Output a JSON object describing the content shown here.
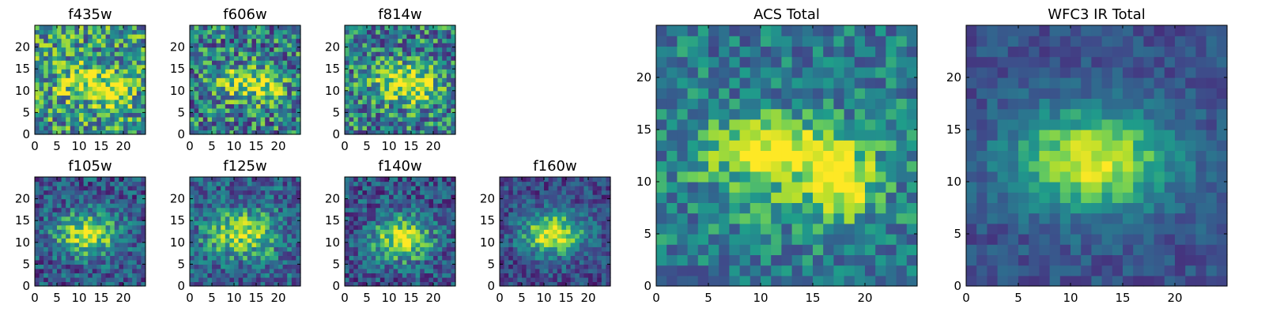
{
  "figure": {
    "description_free": true,
    "colormap": "viridis",
    "colormap_stops": [
      "#440154",
      "#482777",
      "#3f4a8a",
      "#31678e",
      "#26838f",
      "#1f9d8a",
      "#6cce5a",
      "#b6de2b",
      "#fee825"
    ],
    "grid_size": 25
  },
  "chart_data": [
    {
      "type": "heatmap",
      "title": "f435w",
      "xlabel": "",
      "ylabel": "",
      "xlim": [
        0,
        25
      ],
      "ylim": [
        0,
        25
      ],
      "xticks": [
        0,
        5,
        10,
        15,
        20
      ],
      "yticks": [
        0,
        5,
        10,
        15,
        20
      ],
      "blobs": [
        {
          "x": 12,
          "y": 12,
          "sx": 5,
          "sy": 3,
          "amp": 0.35
        },
        {
          "x": 18,
          "y": 9,
          "sx": 2.5,
          "sy": 3,
          "amp": 0.3
        }
      ],
      "base": 0.55,
      "noise": 0.35,
      "seed": 11
    },
    {
      "type": "heatmap",
      "title": "f606w",
      "xlabel": "",
      "ylabel": "",
      "xlim": [
        0,
        25
      ],
      "ylim": [
        0,
        25
      ],
      "xticks": [
        0,
        5,
        10,
        15,
        20
      ],
      "yticks": [
        0,
        5,
        10,
        15,
        20
      ],
      "blobs": [
        {
          "x": 12,
          "y": 12,
          "sx": 5,
          "sy": 2.5,
          "amp": 0.45
        },
        {
          "x": 18,
          "y": 10,
          "sx": 2.5,
          "sy": 3,
          "amp": 0.25
        }
      ],
      "base": 0.45,
      "noise": 0.35,
      "seed": 23
    },
    {
      "type": "heatmap",
      "title": "f814w",
      "xlabel": "",
      "ylabel": "",
      "xlim": [
        0,
        25
      ],
      "ylim": [
        0,
        25
      ],
      "xticks": [
        0,
        5,
        10,
        15,
        20
      ],
      "yticks": [
        0,
        5,
        10,
        15,
        20
      ],
      "blobs": [
        {
          "x": 13,
          "y": 12,
          "sx": 5,
          "sy": 3,
          "amp": 0.45
        },
        {
          "x": 17,
          "y": 10,
          "sx": 3,
          "sy": 3,
          "amp": 0.2
        }
      ],
      "base": 0.45,
      "noise": 0.33,
      "seed": 37
    },
    {
      "type": "heatmap",
      "title": "f105w",
      "xlabel": "",
      "ylabel": "",
      "xlim": [
        0,
        25
      ],
      "ylim": [
        0,
        25
      ],
      "xticks": [
        0,
        5,
        10,
        15,
        20
      ],
      "yticks": [
        0,
        5,
        10,
        15,
        20
      ],
      "blobs": [
        {
          "x": 12,
          "y": 12,
          "sx": 5,
          "sy": 3.5,
          "amp": 0.6
        }
      ],
      "base": 0.3,
      "noise": 0.25,
      "seed": 41
    },
    {
      "type": "heatmap",
      "title": "f125w",
      "xlabel": "",
      "ylabel": "",
      "xlim": [
        0,
        25
      ],
      "ylim": [
        0,
        25
      ],
      "xticks": [
        0,
        5,
        10,
        15,
        20
      ],
      "yticks": [
        0,
        5,
        10,
        15,
        20
      ],
      "blobs": [
        {
          "x": 12,
          "y": 12,
          "sx": 5.5,
          "sy": 3.5,
          "amp": 0.55
        }
      ],
      "base": 0.35,
      "noise": 0.25,
      "seed": 53
    },
    {
      "type": "heatmap",
      "title": "f140w",
      "xlabel": "",
      "ylabel": "",
      "xlim": [
        0,
        25
      ],
      "ylim": [
        0,
        25
      ],
      "xticks": [
        0,
        5,
        10,
        15,
        20
      ],
      "yticks": [
        0,
        5,
        10,
        15,
        20
      ],
      "blobs": [
        {
          "x": 13,
          "y": 11,
          "sx": 4.5,
          "sy": 3.5,
          "amp": 0.65
        }
      ],
      "base": 0.3,
      "noise": 0.25,
      "seed": 67
    },
    {
      "type": "heatmap",
      "title": "f160w",
      "xlabel": "",
      "ylabel": "",
      "xlim": [
        0,
        25
      ],
      "ylim": [
        0,
        25
      ],
      "xticks": [
        0,
        5,
        10,
        15,
        20
      ],
      "yticks": [
        0,
        5,
        10,
        15,
        20
      ],
      "blobs": [
        {
          "x": 12,
          "y": 12,
          "sx": 5,
          "sy": 3.5,
          "amp": 0.7
        }
      ],
      "base": 0.25,
      "noise": 0.2,
      "seed": 79
    },
    {
      "type": "heatmap",
      "title": "ACS Total",
      "xlabel": "",
      "ylabel": "",
      "xlim": [
        0,
        25
      ],
      "ylim": [
        0,
        25
      ],
      "xticks": [
        0,
        5,
        10,
        15,
        20
      ],
      "yticks": [
        0,
        5,
        10,
        15,
        20
      ],
      "blobs": [
        {
          "x": 11,
          "y": 13,
          "sx": 4,
          "sy": 2,
          "amp": 0.45
        },
        {
          "x": 18,
          "y": 10,
          "sx": 2,
          "sy": 2.5,
          "amp": 0.45
        },
        {
          "x": 13,
          "y": 11,
          "sx": 6,
          "sy": 3.5,
          "amp": 0.2
        }
      ],
      "base": 0.45,
      "noise": 0.22,
      "seed": 97
    },
    {
      "type": "heatmap",
      "title": "WFC3 IR Total",
      "xlabel": "",
      "ylabel": "",
      "xlim": [
        0,
        25
      ],
      "ylim": [
        0,
        25
      ],
      "xticks": [
        0,
        5,
        10,
        15,
        20
      ],
      "yticks": [
        0,
        5,
        10,
        15,
        20
      ],
      "blobs": [
        {
          "x": 12,
          "y": 12,
          "sx": 5.5,
          "sy": 3.5,
          "amp": 0.65
        }
      ],
      "base": 0.28,
      "noise": 0.12,
      "seed": 113
    }
  ]
}
